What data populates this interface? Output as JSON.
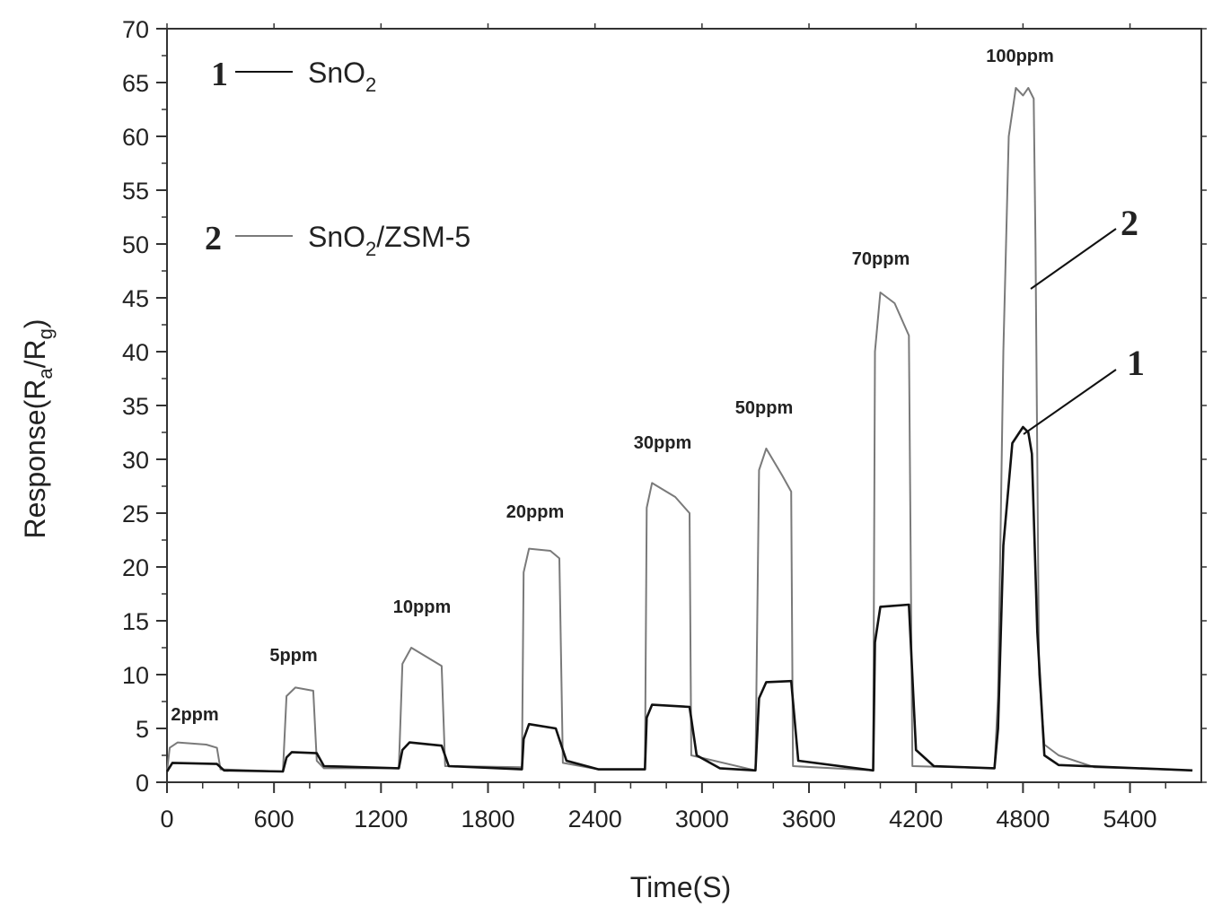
{
  "chart_data": {
    "type": "line",
    "xlabel": "Time(S)",
    "ylabel": {
      "main": "Response(R",
      "sub_a": "a",
      "slash": "/R",
      "sub_g": "g",
      "close": ")"
    },
    "xlim": [
      0,
      5800
    ],
    "ylim": [
      0,
      70
    ],
    "xticks": [
      0,
      600,
      1200,
      1800,
      2400,
      3000,
      3600,
      4200,
      4800,
      5400
    ],
    "yticks": [
      0,
      5,
      10,
      15,
      20,
      25,
      30,
      35,
      40,
      45,
      50,
      55,
      60,
      65,
      70
    ],
    "grid": false,
    "legend": [
      {
        "num": "1",
        "text": "SnO",
        "sub": "2",
        "after": "",
        "color": "#111111"
      },
      {
        "num": "2",
        "text": "SnO",
        "sub": "2",
        "after": "/ZSM-5",
        "color": "#7a7a7a"
      }
    ],
    "annotations": [
      "2ppm",
      "5ppm",
      "10ppm",
      "20ppm",
      "30ppm",
      "50ppm",
      "70ppm",
      "100ppm"
    ],
    "callouts": [
      "2",
      "1"
    ],
    "series": [
      {
        "name": "SnO2",
        "color": "#111111",
        "points": [
          [
            0,
            1
          ],
          [
            30,
            1.8
          ],
          [
            280,
            1.7
          ],
          [
            320,
            1.1
          ],
          [
            650,
            1.0
          ],
          [
            670,
            2.3
          ],
          [
            700,
            2.8
          ],
          [
            840,
            2.7
          ],
          [
            880,
            1.5
          ],
          [
            1300,
            1.3
          ],
          [
            1320,
            3.0
          ],
          [
            1360,
            3.7
          ],
          [
            1540,
            3.4
          ],
          [
            1580,
            1.5
          ],
          [
            1990,
            1.2
          ],
          [
            2000,
            4.0
          ],
          [
            2030,
            5.4
          ],
          [
            2180,
            5.0
          ],
          [
            2240,
            2.0
          ],
          [
            2420,
            1.2
          ],
          [
            2680,
            1.2
          ],
          [
            2690,
            6.0
          ],
          [
            2720,
            7.2
          ],
          [
            2930,
            7.0
          ],
          [
            2970,
            2.5
          ],
          [
            3100,
            1.3
          ],
          [
            3300,
            1.1
          ],
          [
            3320,
            7.8
          ],
          [
            3360,
            9.3
          ],
          [
            3500,
            9.4
          ],
          [
            3540,
            2.0
          ],
          [
            3960,
            1.1
          ],
          [
            3970,
            13.0
          ],
          [
            4000,
            16.3
          ],
          [
            4160,
            16.5
          ],
          [
            4200,
            3.0
          ],
          [
            4300,
            1.5
          ],
          [
            4640,
            1.3
          ],
          [
            4660,
            5.0
          ],
          [
            4690,
            22.0
          ],
          [
            4740,
            31.5
          ],
          [
            4800,
            33.0
          ],
          [
            4830,
            32.5
          ],
          [
            4850,
            30.5
          ],
          [
            4880,
            14.0
          ],
          [
            4920,
            2.5
          ],
          [
            5000,
            1.6
          ],
          [
            5600,
            1.2
          ],
          [
            5750,
            1.1
          ]
        ]
      },
      {
        "name": "SnO2/ZSM-5",
        "color": "#7a7a7a",
        "points": [
          [
            0,
            1
          ],
          [
            15,
            3.2
          ],
          [
            60,
            3.7
          ],
          [
            220,
            3.5
          ],
          [
            280,
            3.2
          ],
          [
            300,
            1.2
          ],
          [
            650,
            1.0
          ],
          [
            670,
            8.0
          ],
          [
            720,
            8.8
          ],
          [
            820,
            8.5
          ],
          [
            840,
            2.0
          ],
          [
            880,
            1.3
          ],
          [
            1300,
            1.3
          ],
          [
            1320,
            11.0
          ],
          [
            1370,
            12.5
          ],
          [
            1470,
            11.5
          ],
          [
            1540,
            10.8
          ],
          [
            1560,
            1.5
          ],
          [
            1990,
            1.4
          ],
          [
            2000,
            19.5
          ],
          [
            2030,
            21.7
          ],
          [
            2150,
            21.5
          ],
          [
            2200,
            20.8
          ],
          [
            2220,
            1.8
          ],
          [
            2420,
            1.2
          ],
          [
            2680,
            1.2
          ],
          [
            2690,
            25.5
          ],
          [
            2720,
            27.8
          ],
          [
            2850,
            26.5
          ],
          [
            2930,
            25.0
          ],
          [
            2940,
            2.5
          ],
          [
            3300,
            1.1
          ],
          [
            3320,
            29.0
          ],
          [
            3360,
            31.0
          ],
          [
            3450,
            28.5
          ],
          [
            3500,
            27.0
          ],
          [
            3510,
            1.5
          ],
          [
            3960,
            1.1
          ],
          [
            3970,
            40.0
          ],
          [
            4000,
            45.5
          ],
          [
            4080,
            44.5
          ],
          [
            4160,
            41.5
          ],
          [
            4180,
            1.5
          ],
          [
            4640,
            1.3
          ],
          [
            4660,
            8.0
          ],
          [
            4690,
            40.0
          ],
          [
            4720,
            60.0
          ],
          [
            4760,
            64.5
          ],
          [
            4800,
            63.8
          ],
          [
            4830,
            64.5
          ],
          [
            4860,
            63.5
          ],
          [
            4870,
            50.0
          ],
          [
            4890,
            10.0
          ],
          [
            4920,
            3.5
          ],
          [
            5000,
            2.5
          ],
          [
            5200,
            1.4
          ],
          [
            5750,
            1.1
          ]
        ]
      }
    ]
  }
}
